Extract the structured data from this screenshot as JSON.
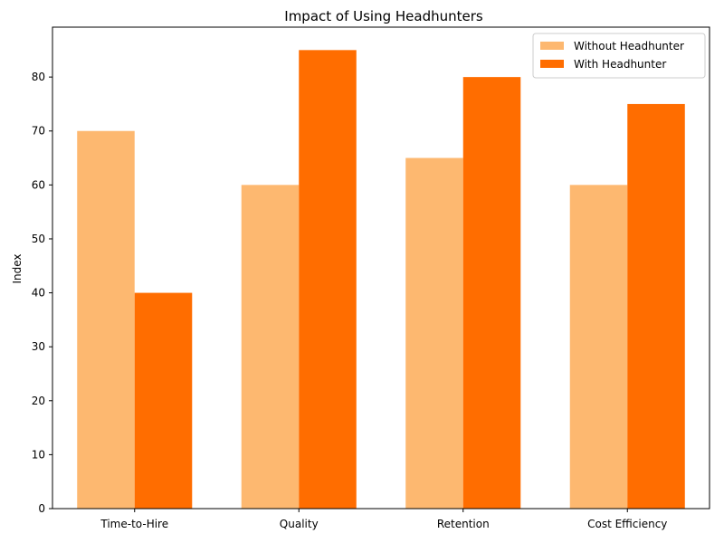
{
  "chart_data": {
    "type": "bar",
    "title": "Impact of Using Headhunters",
    "xlabel": "",
    "ylabel": "Index",
    "categories": [
      "Time-to-Hire",
      "Quality",
      "Retention",
      "Cost Efficiency"
    ],
    "series": [
      {
        "name": "Without Headhunter",
        "values": [
          70,
          60,
          65,
          60
        ],
        "color": "#fdb870"
      },
      {
        "name": "With Headhunter",
        "values": [
          40,
          85,
          80,
          75
        ],
        "color": "#ff6d00"
      }
    ],
    "ylim": [
      0,
      89.25
    ],
    "yticks": [
      0,
      10,
      20,
      30,
      40,
      50,
      60,
      70,
      80
    ],
    "grid": false,
    "legend_position": "top-right"
  }
}
